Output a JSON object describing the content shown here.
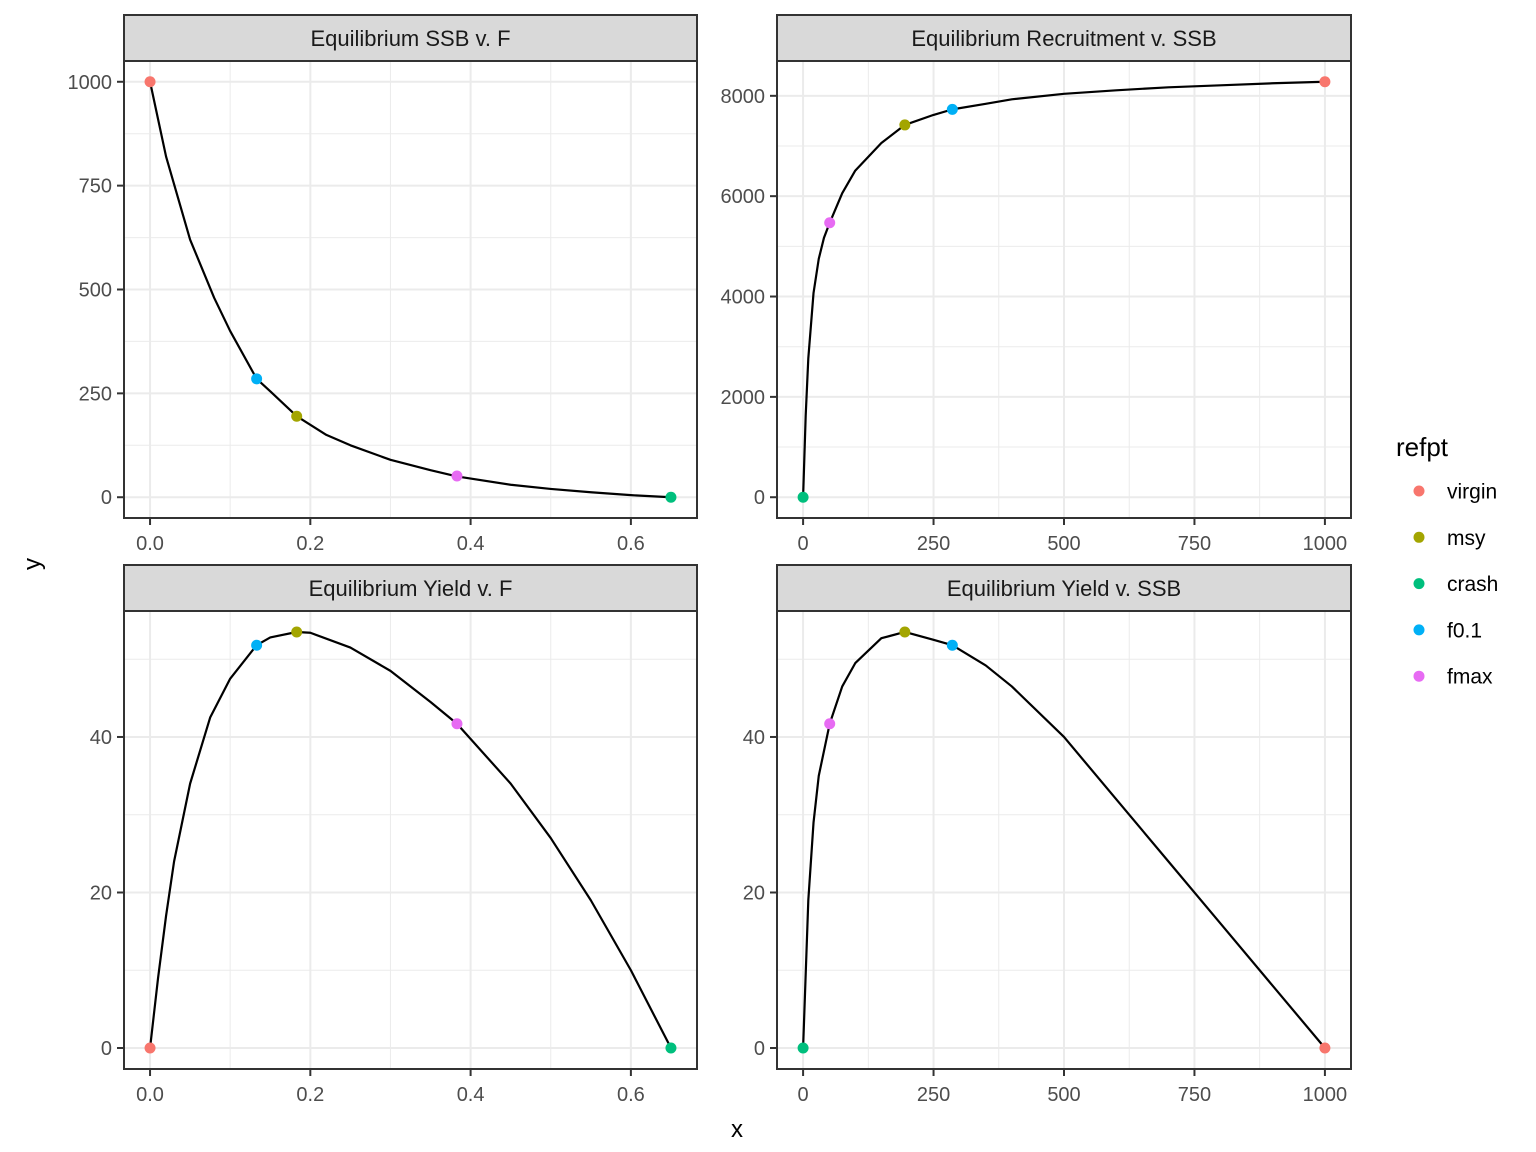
{
  "chart_data": {
    "type": "line",
    "x_label": "x",
    "y_label": "y",
    "legend": {
      "title": "refpt",
      "position": "right",
      "entries": [
        {
          "name": "virgin",
          "color": "#F8766D"
        },
        {
          "name": "msy",
          "color": "#A3A500"
        },
        {
          "name": "crash",
          "color": "#00BF7D"
        },
        {
          "name": "f0.1",
          "color": "#00B0F6"
        },
        {
          "name": "fmax",
          "color": "#E76BF3"
        }
      ]
    },
    "panels": [
      {
        "title": "Equilibrium SSB v. F",
        "xlim": [
          -0.0325,
          0.6825
        ],
        "ylim": [
          -50,
          1050
        ],
        "x_ticks": [
          0.0,
          0.2,
          0.4,
          0.6
        ],
        "x_tick_labels": [
          "0.0",
          "0.2",
          "0.4",
          "0.6"
        ],
        "y_ticks": [
          0,
          250,
          500,
          750,
          1000
        ],
        "y_tick_labels": [
          "0",
          "250",
          "500",
          "750",
          "1000"
        ],
        "curve": [
          [
            0,
            1000
          ],
          [
            0.02,
            820
          ],
          [
            0.05,
            620
          ],
          [
            0.08,
            480
          ],
          [
            0.1,
            400
          ],
          [
            0.133,
            285
          ],
          [
            0.15,
            255
          ],
          [
            0.183,
            195
          ],
          [
            0.22,
            150
          ],
          [
            0.25,
            125
          ],
          [
            0.3,
            90
          ],
          [
            0.35,
            65
          ],
          [
            0.383,
            50
          ],
          [
            0.45,
            30
          ],
          [
            0.5,
            20
          ],
          [
            0.55,
            12
          ],
          [
            0.6,
            5
          ],
          [
            0.65,
            0
          ]
        ],
        "points": [
          {
            "refpt": "virgin",
            "x": 0.0,
            "y": 1000
          },
          {
            "refpt": "msy",
            "x": 0.183,
            "y": 195
          },
          {
            "refpt": "crash",
            "x": 0.65,
            "y": 0
          },
          {
            "refpt": "f0.1",
            "x": 0.133,
            "y": 285
          },
          {
            "refpt": "fmax",
            "x": 0.383,
            "y": 51
          }
        ]
      },
      {
        "title": "Equilibrium Recruitment v. SSB",
        "xlim": [
          -50,
          1050
        ],
        "ylim": [
          -414,
          8694
        ],
        "x_ticks": [
          0,
          250,
          500,
          750,
          1000
        ],
        "x_tick_labels": [
          "0",
          "250",
          "500",
          "750",
          "1000"
        ],
        "y_ticks": [
          0,
          2000,
          4000,
          6000,
          8000
        ],
        "y_tick_labels": [
          "0",
          "2000",
          "4000",
          "6000",
          "8000"
        ],
        "curve": [
          [
            0,
            0
          ],
          [
            5,
            1630
          ],
          [
            10,
            2770
          ],
          [
            20,
            4070
          ],
          [
            30,
            4750
          ],
          [
            40,
            5170
          ],
          [
            51,
            5470
          ],
          [
            75,
            6060
          ],
          [
            100,
            6510
          ],
          [
            150,
            7060
          ],
          [
            195,
            7420
          ],
          [
            250,
            7620
          ],
          [
            286,
            7730
          ],
          [
            350,
            7840
          ],
          [
            400,
            7930
          ],
          [
            500,
            8040
          ],
          [
            600,
            8110
          ],
          [
            700,
            8170
          ],
          [
            800,
            8210
          ],
          [
            900,
            8250
          ],
          [
            1000,
            8280
          ]
        ],
        "points": [
          {
            "refpt": "virgin",
            "x": 1000,
            "y": 8280
          },
          {
            "refpt": "msy",
            "x": 195,
            "y": 7420
          },
          {
            "refpt": "crash",
            "x": 0,
            "y": 0
          },
          {
            "refpt": "f0.1",
            "x": 286,
            "y": 7730
          },
          {
            "refpt": "fmax",
            "x": 51,
            "y": 5470
          }
        ]
      },
      {
        "title": "Equilibrium Yield v. F",
        "xlim": [
          -0.0325,
          0.6825
        ],
        "ylim": [
          -2.7,
          56.2
        ],
        "x_ticks": [
          0.0,
          0.2,
          0.4,
          0.6
        ],
        "x_tick_labels": [
          "0.0",
          "0.2",
          "0.4",
          "0.6"
        ],
        "y_ticks": [
          0,
          20,
          40
        ],
        "y_tick_labels": [
          "0",
          "20",
          "40"
        ],
        "curve": [
          [
            0,
            0
          ],
          [
            0.01,
            9
          ],
          [
            0.02,
            17
          ],
          [
            0.03,
            24
          ],
          [
            0.05,
            34
          ],
          [
            0.075,
            42.5
          ],
          [
            0.1,
            47.5
          ],
          [
            0.133,
            51.8
          ],
          [
            0.15,
            52.8
          ],
          [
            0.183,
            53.5
          ],
          [
            0.2,
            53.4
          ],
          [
            0.25,
            51.5
          ],
          [
            0.3,
            48.5
          ],
          [
            0.35,
            44.5
          ],
          [
            0.383,
            41.7
          ],
          [
            0.45,
            34
          ],
          [
            0.5,
            27
          ],
          [
            0.55,
            19
          ],
          [
            0.6,
            10
          ],
          [
            0.65,
            0
          ]
        ],
        "points": [
          {
            "refpt": "virgin",
            "x": 0.0,
            "y": 0
          },
          {
            "refpt": "msy",
            "x": 0.183,
            "y": 53.5
          },
          {
            "refpt": "crash",
            "x": 0.65,
            "y": 0
          },
          {
            "refpt": "f0.1",
            "x": 0.133,
            "y": 51.8
          },
          {
            "refpt": "fmax",
            "x": 0.383,
            "y": 41.7
          }
        ]
      },
      {
        "title": "Equilibrium Yield v. SSB",
        "xlim": [
          -50,
          1050
        ],
        "ylim": [
          -2.7,
          56.2
        ],
        "x_ticks": [
          0,
          250,
          500,
          750,
          1000
        ],
        "x_tick_labels": [
          "0",
          "250",
          "500",
          "750",
          "1000"
        ],
        "y_ticks": [
          0,
          20,
          40
        ],
        "y_tick_labels": [
          "0",
          "20",
          "40"
        ],
        "curve": [
          [
            0,
            0
          ],
          [
            10,
            19
          ],
          [
            20,
            29
          ],
          [
            30,
            35
          ],
          [
            51,
            41.7
          ],
          [
            75,
            46.5
          ],
          [
            100,
            49.5
          ],
          [
            150,
            52.7
          ],
          [
            195,
            53.5
          ],
          [
            250,
            52.5
          ],
          [
            286,
            51.8
          ],
          [
            350,
            49.2
          ],
          [
            400,
            46.5
          ],
          [
            500,
            40
          ],
          [
            600,
            32
          ],
          [
            700,
            24
          ],
          [
            800,
            16
          ],
          [
            900,
            8
          ],
          [
            1000,
            0
          ]
        ],
        "points": [
          {
            "refpt": "virgin",
            "x": 1000,
            "y": 0
          },
          {
            "refpt": "msy",
            "x": 195,
            "y": 53.5
          },
          {
            "refpt": "crash",
            "x": 0,
            "y": 0
          },
          {
            "refpt": "f0.1",
            "x": 286,
            "y": 51.8
          },
          {
            "refpt": "fmax",
            "x": 51,
            "y": 41.7
          }
        ]
      }
    ]
  }
}
